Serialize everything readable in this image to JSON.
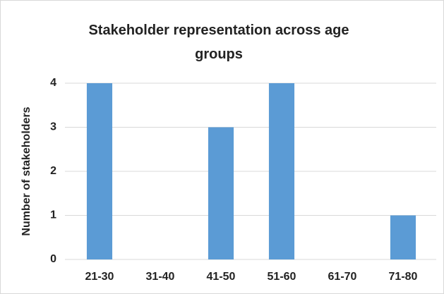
{
  "chart_data": {
    "type": "bar",
    "title": "Stakeholder representation across age groups",
    "y_label": "Number of stakeholders",
    "categories": [
      "21-30",
      "31-40",
      "41-50",
      "51-60",
      "61-70",
      "71-80"
    ],
    "values": [
      4,
      0,
      3,
      4,
      0,
      1
    ],
    "color": "#5b9bd5",
    "ylim": [
      0,
      4
    ],
    "yticks": [
      0,
      1,
      2,
      3,
      4
    ],
    "grid": true
  }
}
